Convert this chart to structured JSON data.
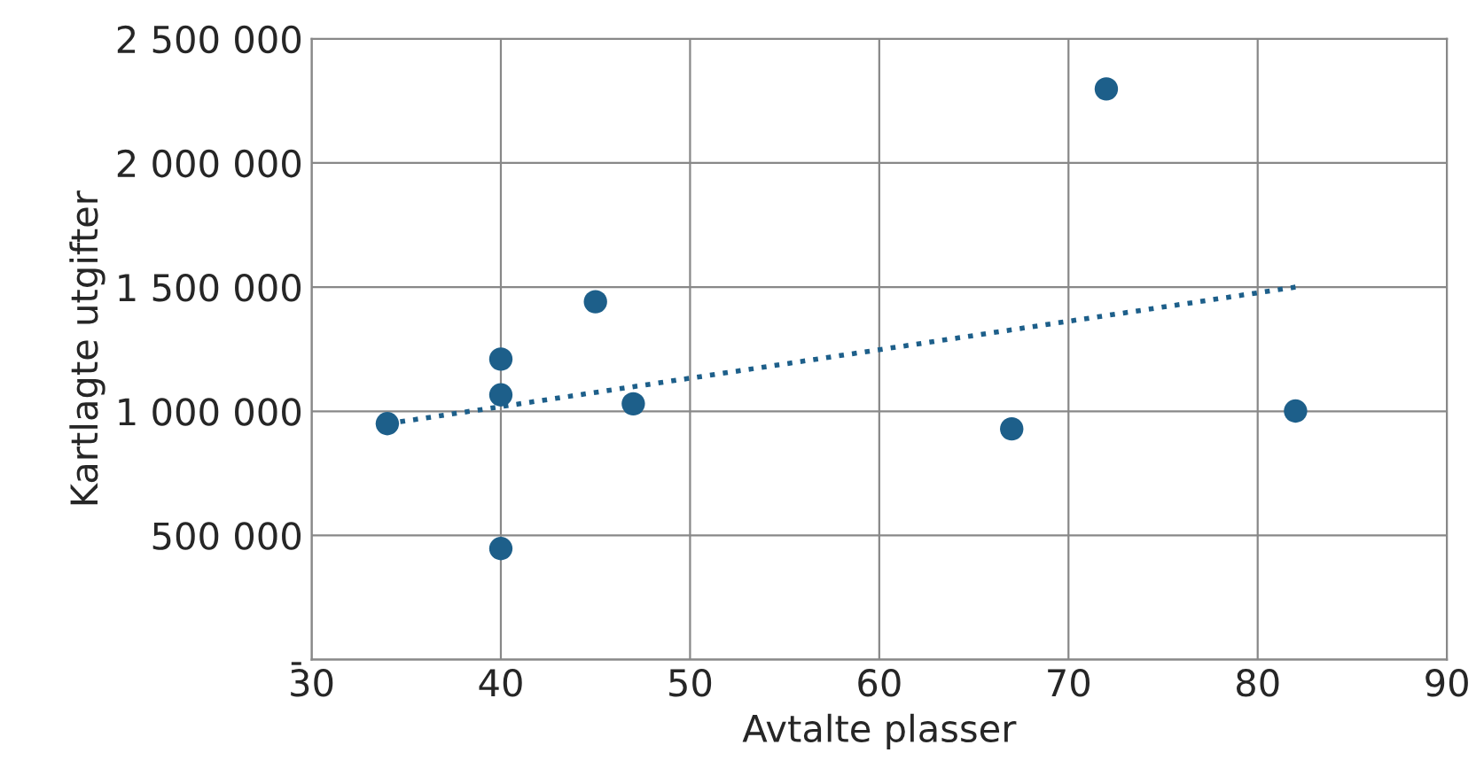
{
  "chart_data": {
    "type": "scatter",
    "xlabel": "Avtalte plasser",
    "ylabel": "Kartlagte utgifter",
    "xlim": [
      30,
      90
    ],
    "xticks": [
      30,
      40,
      50,
      60,
      70,
      80,
      90
    ],
    "ylim": [
      0,
      2500000
    ],
    "yticks": [
      {
        "value": 0,
        "label": "-"
      },
      {
        "value": 500000,
        "label": "500 000"
      },
      {
        "value": 1000000,
        "label": "1 000 000"
      },
      {
        "value": 1500000,
        "label": "1 500 000"
      },
      {
        "value": 2000000,
        "label": "2 000 000"
      },
      {
        "value": 2500000,
        "label": "2 500 000"
      }
    ],
    "grid": true,
    "series": [
      {
        "marker": "circle",
        "color": "#1d5f8a",
        "x": [
          34,
          40,
          40,
          40,
          45,
          47,
          67,
          72,
          82
        ],
        "values": [
          950000,
          1210000,
          1066000,
          447000,
          1441000,
          1030000,
          929000,
          2298000,
          1001000
        ]
      },
      {
        "type": "line",
        "color": "#1d5f8a",
        "line_style": "dotted",
        "x": [
          34,
          82
        ],
        "values": [
          950000,
          1500000
        ]
      }
    ]
  }
}
